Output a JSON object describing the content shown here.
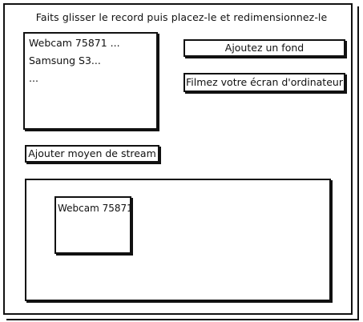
{
  "instruction": "Faits glisser le record puis placez-le et redimensionnez-le",
  "sources": {
    "items": [
      {
        "label": "Webcam 75871 ..."
      },
      {
        "label": "Samsung S3..."
      },
      {
        "label": "..."
      }
    ]
  },
  "buttons": {
    "add_background": "Ajoutez un fond",
    "record_screen": "Filmez votre écran d'ordinateur",
    "add_stream_source": "Ajouter moyen de stream"
  },
  "preview": {
    "placed_record_label": "Webcam 75871"
  }
}
